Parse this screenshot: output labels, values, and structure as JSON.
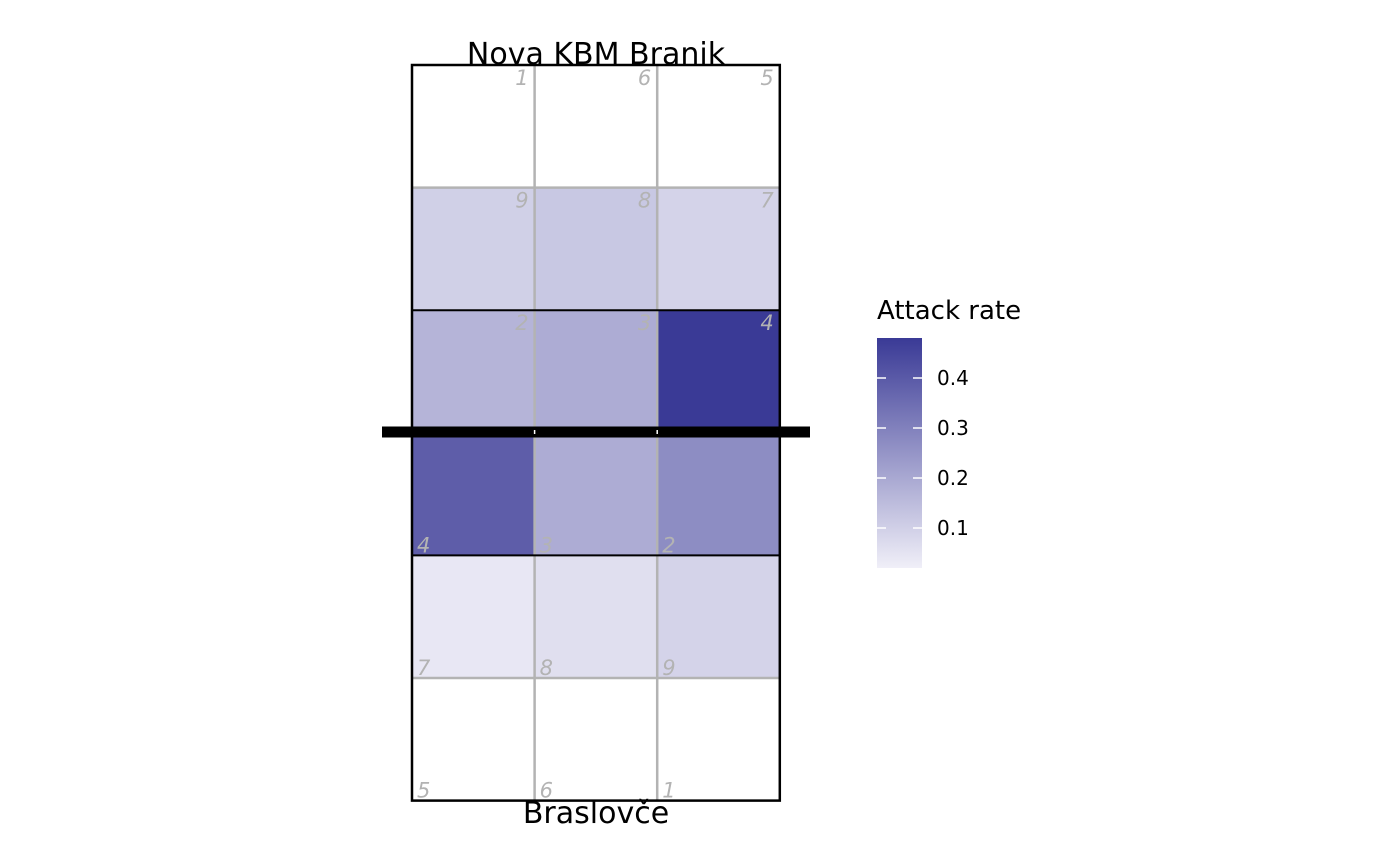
{
  "chart_data": {
    "type": "heatmap",
    "top_team": "Nova KBM Branik",
    "bottom_team": "Braslovče",
    "legend": {
      "title": "Attack rate",
      "placement": "right",
      "range": [
        0.02,
        0.48
      ],
      "ticks": [
        0.1,
        0.2,
        0.3,
        0.4
      ],
      "tick_labels": [
        "0.1",
        "0.2",
        "0.3",
        "0.4"
      ],
      "color_low": "#f0eff8",
      "color_high": "#3a3a96"
    },
    "cells": [
      {
        "side": "top",
        "row": 1,
        "col": 1,
        "zone": "1",
        "value": null
      },
      {
        "side": "top",
        "row": 1,
        "col": 2,
        "zone": "6",
        "value": null
      },
      {
        "side": "top",
        "row": 1,
        "col": 3,
        "zone": "5",
        "value": null
      },
      {
        "side": "top",
        "row": 2,
        "col": 1,
        "zone": "9",
        "value": 0.1
      },
      {
        "side": "top",
        "row": 2,
        "col": 2,
        "zone": "8",
        "value": 0.12
      },
      {
        "side": "top",
        "row": 2,
        "col": 3,
        "zone": "7",
        "value": 0.09
      },
      {
        "side": "top",
        "row": 3,
        "col": 1,
        "zone": "2",
        "value": 0.17
      },
      {
        "side": "top",
        "row": 3,
        "col": 2,
        "zone": "3",
        "value": 0.19
      },
      {
        "side": "top",
        "row": 3,
        "col": 3,
        "zone": "4",
        "value": 0.48
      },
      {
        "side": "bottom",
        "row": 1,
        "col": 1,
        "zone": "4",
        "value": 0.39
      },
      {
        "side": "bottom",
        "row": 1,
        "col": 2,
        "zone": "3",
        "value": 0.19
      },
      {
        "side": "bottom",
        "row": 1,
        "col": 3,
        "zone": "2",
        "value": 0.27
      },
      {
        "side": "bottom",
        "row": 2,
        "col": 1,
        "zone": "7",
        "value": 0.04
      },
      {
        "side": "bottom",
        "row": 2,
        "col": 2,
        "zone": "8",
        "value": 0.06
      },
      {
        "side": "bottom",
        "row": 2,
        "col": 3,
        "zone": "9",
        "value": 0.09
      },
      {
        "side": "bottom",
        "row": 3,
        "col": 1,
        "zone": "5",
        "value": null
      },
      {
        "side": "bottom",
        "row": 3,
        "col": 2,
        "zone": "6",
        "value": null
      },
      {
        "side": "bottom",
        "row": 3,
        "col": 3,
        "zone": "1",
        "value": null
      }
    ]
  }
}
